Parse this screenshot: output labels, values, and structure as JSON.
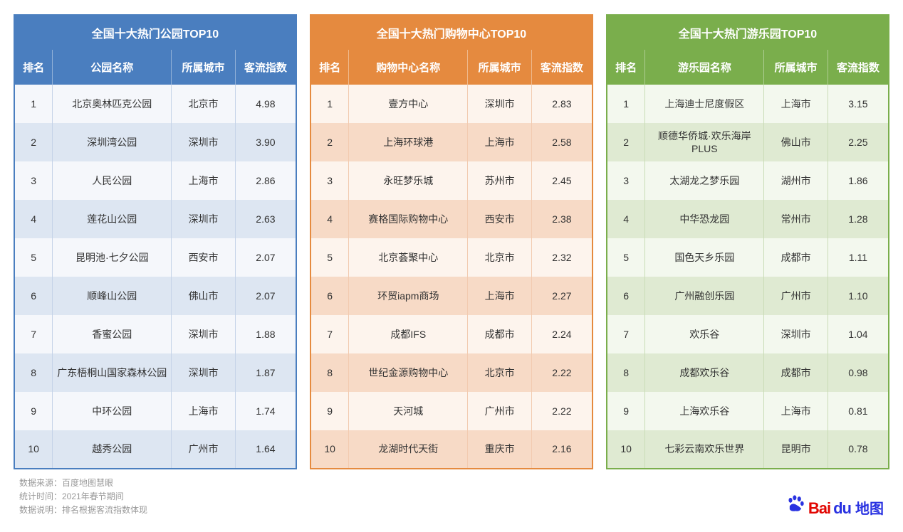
{
  "tables": [
    {
      "theme": "blue",
      "title": "全国十大热门公园TOP10",
      "headers": [
        "排名",
        "公园名称",
        "所属城市",
        "客流指数"
      ],
      "rows": [
        [
          "1",
          "北京奥林匹克公园",
          "北京市",
          "4.98"
        ],
        [
          "2",
          "深圳湾公园",
          "深圳市",
          "3.90"
        ],
        [
          "3",
          "人民公园",
          "上海市",
          "2.86"
        ],
        [
          "4",
          "莲花山公园",
          "深圳市",
          "2.63"
        ],
        [
          "5",
          "昆明池·七夕公园",
          "西安市",
          "2.07"
        ],
        [
          "6",
          "顺峰山公园",
          "佛山市",
          "2.07"
        ],
        [
          "7",
          "香蜜公园",
          "深圳市",
          "1.88"
        ],
        [
          "8",
          "广东梧桐山国家森林公园",
          "深圳市",
          "1.87"
        ],
        [
          "9",
          "中环公园",
          "上海市",
          "1.74"
        ],
        [
          "10",
          "越秀公园",
          "广州市",
          "1.64"
        ]
      ]
    },
    {
      "theme": "orange",
      "title": "全国十大热门购物中心TOP10",
      "headers": [
        "排名",
        "购物中心名称",
        "所属城市",
        "客流指数"
      ],
      "rows": [
        [
          "1",
          "壹方中心",
          "深圳市",
          "2.83"
        ],
        [
          "2",
          "上海环球港",
          "上海市",
          "2.58"
        ],
        [
          "3",
          "永旺梦乐城",
          "苏州市",
          "2.45"
        ],
        [
          "4",
          "赛格国际购物中心",
          "西安市",
          "2.38"
        ],
        [
          "5",
          "北京荟聚中心",
          "北京市",
          "2.32"
        ],
        [
          "6",
          "环贸iapm商场",
          "上海市",
          "2.27"
        ],
        [
          "7",
          "成都IFS",
          "成都市",
          "2.24"
        ],
        [
          "8",
          "世纪金源购物中心",
          "北京市",
          "2.22"
        ],
        [
          "9",
          "天河城",
          "广州市",
          "2.22"
        ],
        [
          "10",
          "龙湖时代天街",
          "重庆市",
          "2.16"
        ]
      ]
    },
    {
      "theme": "green",
      "title": "全国十大热门游乐园TOP10",
      "headers": [
        "排名",
        "游乐园名称",
        "所属城市",
        "客流指数"
      ],
      "rows": [
        [
          "1",
          "上海迪士尼度假区",
          "上海市",
          "3.15"
        ],
        [
          "2",
          "顺德华侨城·欢乐海岸PLUS",
          "佛山市",
          "2.25"
        ],
        [
          "3",
          "太湖龙之梦乐园",
          "湖州市",
          "1.86"
        ],
        [
          "4",
          "中华恐龙园",
          "常州市",
          "1.28"
        ],
        [
          "5",
          "国色天乡乐园",
          "成都市",
          "1.11"
        ],
        [
          "6",
          "广州融创乐园",
          "广州市",
          "1.10"
        ],
        [
          "7",
          "欢乐谷",
          "深圳市",
          "1.04"
        ],
        [
          "8",
          "成都欢乐谷",
          "成都市",
          "0.98"
        ],
        [
          "9",
          "上海欢乐谷",
          "上海市",
          "0.81"
        ],
        [
          "10",
          "七彩云南欢乐世界",
          "昆明市",
          "0.78"
        ]
      ]
    }
  ],
  "footer": {
    "source": "数据来源：百度地图慧眼",
    "period": "统计时间：2021年春节期间",
    "note": "数据说明：排名根据客流指数体现"
  },
  "logo": {
    "bai": "Bai",
    "du": "du",
    "map": "地图"
  },
  "colors": {
    "blue": "#4a7ebf",
    "orange": "#e58a3f",
    "green": "#7aae4c"
  }
}
